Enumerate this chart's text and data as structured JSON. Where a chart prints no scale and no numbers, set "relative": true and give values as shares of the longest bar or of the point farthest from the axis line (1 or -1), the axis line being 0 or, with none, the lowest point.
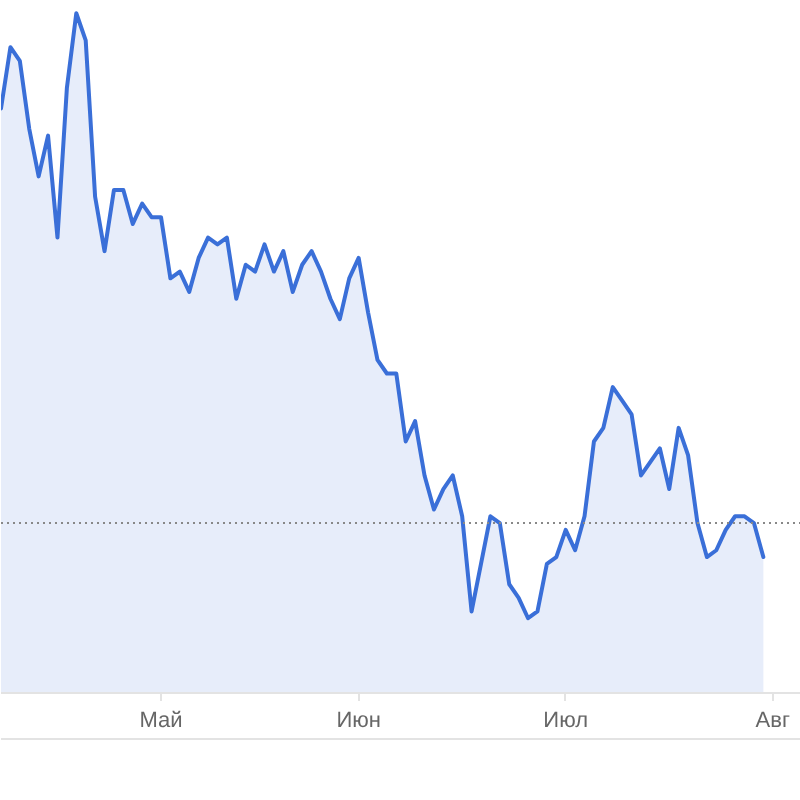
{
  "chart_data": {
    "type": "area",
    "relative": true,
    "categories": [
      null,
      null,
      null,
      null,
      null,
      null,
      null,
      null,
      null,
      null,
      null,
      null,
      null,
      null,
      null,
      null,
      null,
      "Май",
      null,
      null,
      null,
      null,
      null,
      null,
      null,
      null,
      null,
      null,
      null,
      null,
      null,
      null,
      null,
      null,
      null,
      null,
      null,
      null,
      "Июн",
      null,
      null,
      null,
      null,
      null,
      null,
      null,
      null,
      null,
      null,
      null,
      null,
      null,
      null,
      null,
      null,
      null,
      null,
      null,
      null,
      null,
      "Июл",
      null,
      null,
      null,
      null,
      null,
      null,
      null,
      null,
      null,
      null,
      null,
      null,
      null,
      null,
      null,
      null,
      null,
      null,
      null,
      null,
      null,
      "Авг"
    ],
    "series": [
      {
        "color": "#3a6fd8",
        "values": [
          0.86,
          0.95,
          0.93,
          0.83,
          0.76,
          0.82,
          0.67,
          0.89,
          1.0,
          0.96,
          0.73,
          0.65,
          0.74,
          0.74,
          0.69,
          0.72,
          0.7,
          0.7,
          0.61,
          0.62,
          0.59,
          0.64,
          0.67,
          0.66,
          0.67,
          0.58,
          0.63,
          0.62,
          0.66,
          0.62,
          0.65,
          0.59,
          0.63,
          0.65,
          0.62,
          0.58,
          0.55,
          0.61,
          0.64,
          0.56,
          0.49,
          0.47,
          0.47,
          0.37,
          0.4,
          0.32,
          0.27,
          0.3,
          0.32,
          0.26,
          0.12,
          0.19,
          0.26,
          0.25,
          0.16,
          0.14,
          0.11,
          0.12,
          0.19,
          0.2,
          0.24,
          0.21,
          0.26,
          0.37,
          0.39,
          0.45,
          0.43,
          0.41,
          0.32,
          0.34,
          0.36,
          0.3,
          0.39,
          0.35,
          0.25,
          0.2,
          0.21,
          0.24,
          0.26,
          0.26,
          0.25,
          0.2,
          null
        ]
      }
    ],
    "ref_lines": [
      {
        "axis": "y",
        "value": 0.25,
        "color": "#888888",
        "line_style": "dotted"
      }
    ]
  }
}
